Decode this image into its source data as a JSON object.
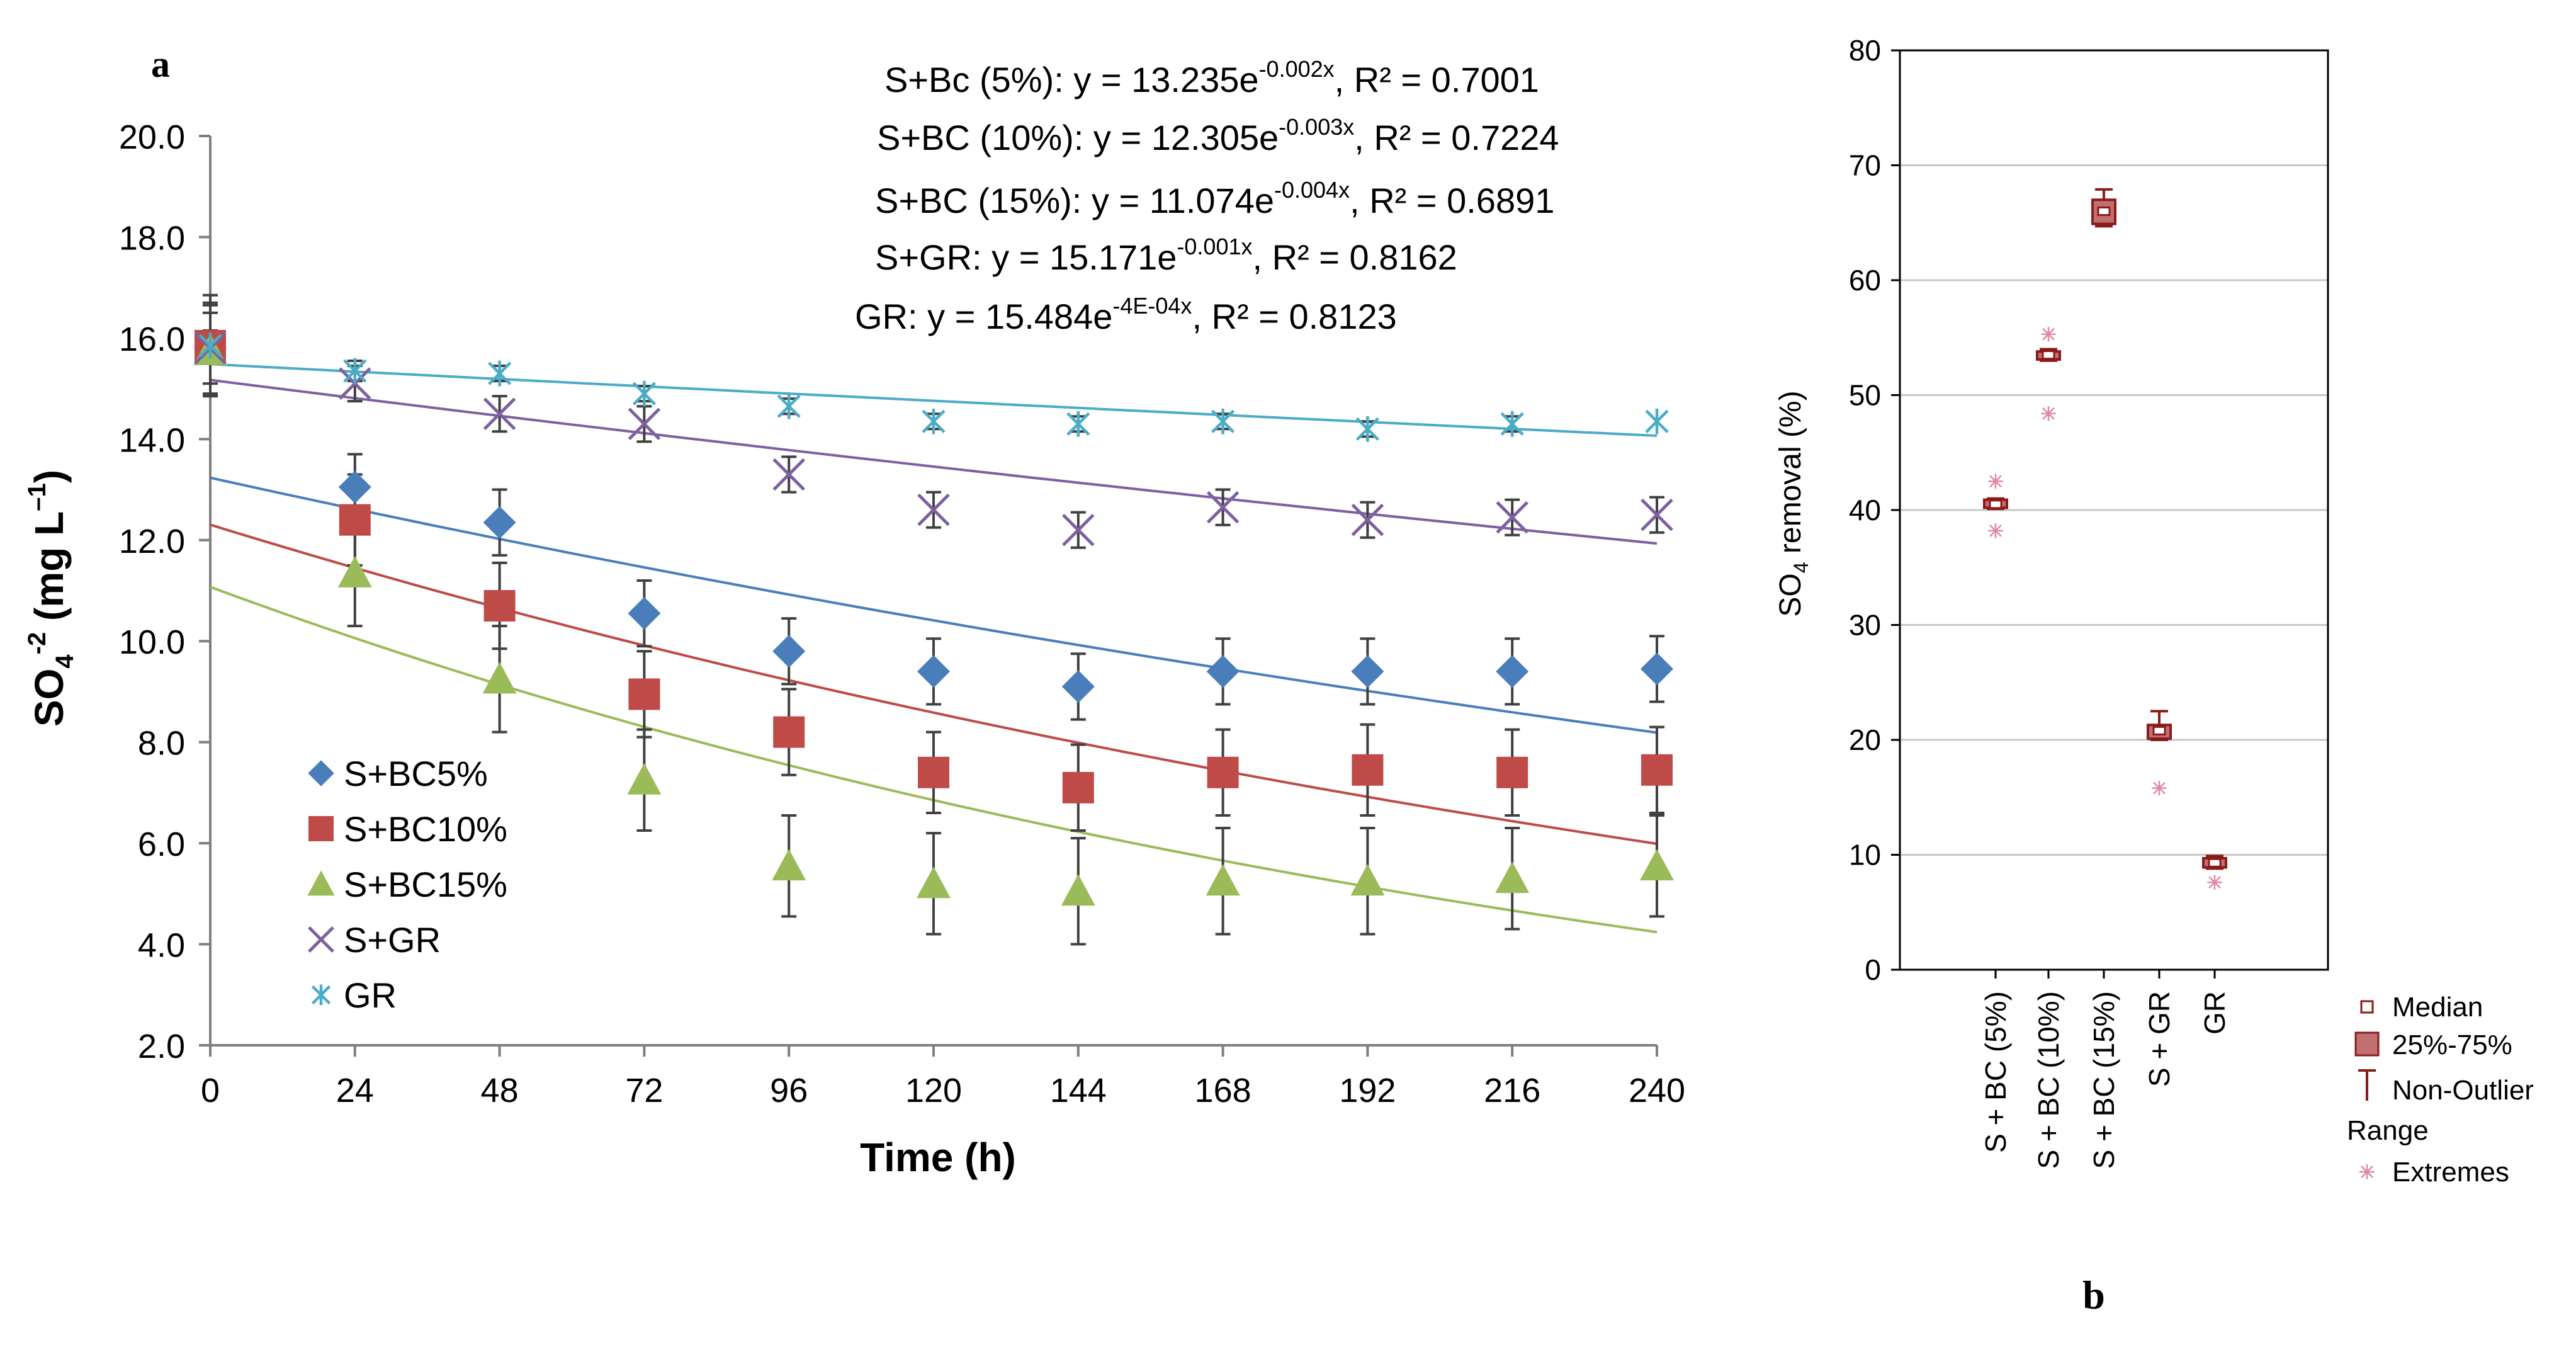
{
  "chart_data": [
    {
      "panel_label": "a",
      "type": "scatter",
      "xlabel": "Time (h)",
      "ylabel": {
        "base": "SO",
        "sub": "4",
        "sup": "-2",
        "units_open": " (mg L",
        "units_sup": "–1",
        "units_close": ")"
      },
      "xlim": [
        0,
        240
      ],
      "ylim": [
        2.0,
        20.0
      ],
      "x_ticks": [
        0,
        24,
        48,
        72,
        96,
        120,
        144,
        168,
        192,
        216,
        240
      ],
      "y_ticks": [
        "2.0",
        "4.0",
        "6.0",
        "8.0",
        "10.0",
        "12.0",
        "14.0",
        "16.0",
        "18.0",
        "20.0"
      ],
      "x": [
        0,
        24,
        48,
        72,
        96,
        120,
        144,
        168,
        192,
        216,
        240
      ],
      "series": [
        {
          "name": "S+BC5%",
          "marker": "diamond",
          "color": "#4a7ebb",
          "values": [
            15.8,
            13.05,
            12.35,
            10.55,
            9.8,
            9.4,
            9.1,
            9.4,
            9.4,
            9.4,
            9.45
          ],
          "errors": [
            0.9,
            0.65,
            0.65,
            0.65,
            0.65,
            0.65,
            0.65,
            0.65,
            0.65,
            0.65,
            0.65
          ],
          "fit": {
            "a": 13.235,
            "b": -0.002
          }
        },
        {
          "name": "S+BC10%",
          "marker": "square",
          "color": "#be4b48",
          "values": [
            15.85,
            12.4,
            10.7,
            8.95,
            8.2,
            7.4,
            7.1,
            7.4,
            7.45,
            7.4,
            7.45
          ],
          "errors": [
            1.0,
            0.9,
            0.85,
            0.85,
            0.85,
            0.8,
            0.85,
            0.85,
            0.9,
            0.85,
            0.85
          ],
          "fit": {
            "a": 12.305,
            "b": -0.003
          }
        },
        {
          "name": "S+BC15%",
          "marker": "triangle",
          "color": "#9bbb59",
          "values": [
            15.75,
            11.35,
            9.25,
            7.25,
            5.55,
            5.2,
            5.05,
            5.25,
            5.25,
            5.3,
            5.55
          ],
          "errors": [
            0.9,
            1.05,
            1.05,
            1.0,
            1.0,
            1.0,
            1.05,
            1.05,
            1.05,
            1.0,
            1.0
          ],
          "fit": {
            "a": 11.074,
            "b": -0.004
          }
        },
        {
          "name": "S+GR",
          "marker": "x",
          "color": "#7d60a0",
          "values": [
            15.8,
            15.1,
            14.5,
            14.3,
            13.3,
            12.6,
            12.2,
            12.65,
            12.4,
            12.45,
            12.5
          ],
          "errors": [
            0.7,
            0.35,
            0.35,
            0.35,
            0.35,
            0.35,
            0.35,
            0.35,
            0.35,
            0.35,
            0.35
          ],
          "fit": {
            "a": 15.171,
            "b": -0.001
          }
        },
        {
          "name": "GR",
          "marker": "star",
          "color": "#4bacc6",
          "values": [
            15.85,
            15.35,
            15.3,
            14.9,
            14.65,
            14.35,
            14.3,
            14.35,
            14.2,
            14.3,
            14.35
          ],
          "errors": [
            0.3,
            0.2,
            0.15,
            0.15,
            0.15,
            0.15,
            0.15,
            0.15,
            0.15,
            0.15,
            0.0
          ],
          "fit": {
            "a": 15.484,
            "b": -0.0004
          }
        }
      ],
      "equations": [
        {
          "prefix": "S+Bc (5%): y = 13.235e",
          "sup": "-0.002x",
          "suffix": ", R² = 0.7001"
        },
        {
          "prefix": "S+BC (10%): y = 12.305e",
          "sup": "-0.003x",
          "suffix": ", R² = 0.7224"
        },
        {
          "prefix": "S+BC (15%): y = 11.074e",
          "sup": "-0.004x",
          "suffix": ", R² = 0.6891"
        },
        {
          "prefix": "S+GR: y = 15.171e",
          "sup": "-0.001x",
          "suffix": ", R² = 0.8162"
        },
        {
          "prefix": "GR: y = 15.484e",
          "sup": "-4E-04x",
          "suffix": ", R² = 0.8123"
        }
      ],
      "legend_position": "bottom-left"
    },
    {
      "panel_label": "b",
      "type": "box",
      "ylabel": {
        "base": "SO",
        "sub": "4",
        "rest": " removal (%)"
      },
      "ylim": [
        0,
        80
      ],
      "y_ticks": [
        0,
        10,
        20,
        30,
        40,
        50,
        60,
        70,
        80
      ],
      "grid": true,
      "categories": [
        "S + BC (5%)",
        "S + BC (10%)",
        "S + BC (15%)",
        "S + GR",
        "GR"
      ],
      "boxes": [
        {
          "median": 40.5,
          "q1": 40.2,
          "q3": 40.9,
          "low": 40.1,
          "high": 41.0,
          "extremes": [
            38.2,
            42.5
          ]
        },
        {
          "median": 53.5,
          "q1": 53.1,
          "q3": 53.8,
          "low": 53.0,
          "high": 54.0,
          "extremes": [
            48.4,
            55.3
          ]
        },
        {
          "median": 66.0,
          "q1": 64.9,
          "q3": 67.0,
          "low": 64.7,
          "high": 67.9,
          "extremes": []
        },
        {
          "median": 20.8,
          "q1": 20.1,
          "q3": 21.3,
          "low": 20.0,
          "high": 22.5,
          "extremes": [
            15.8
          ]
        },
        {
          "median": 9.3,
          "q1": 8.9,
          "q3": 9.7,
          "low": 8.8,
          "high": 9.9,
          "extremes": [
            7.6
          ]
        }
      ],
      "color": "#8b1a1a",
      "extreme_color": "#e08aa0",
      "legend": {
        "median": "Median",
        "box": "25%-75%",
        "whisker_line1": "Non-Outlier",
        "whisker_line2": "Range",
        "extremes": "Extremes"
      }
    }
  ]
}
